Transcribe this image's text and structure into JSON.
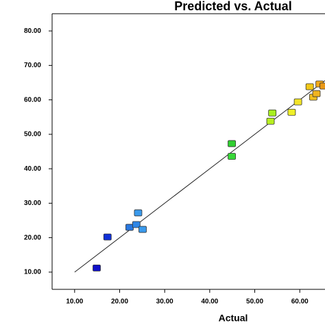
{
  "chart_data": {
    "type": "scatter",
    "title": "Predicted vs. Actual",
    "x_label": "Actual",
    "x": [
      14.9,
      17.3,
      22.2,
      23.7,
      24.1,
      25.1,
      44.9,
      44.9,
      53.9,
      53.5,
      58.2,
      59.6,
      62.2,
      63.0,
      63.7,
      64.4,
      65.3
    ],
    "values": [
      11.2,
      20.2,
      23.0,
      23.8,
      27.2,
      22.4,
      47.3,
      43.6,
      56.2,
      53.8,
      56.4,
      59.4,
      63.8,
      60.8,
      61.8,
      64.6,
      64.0
    ],
    "colors": [
      "#1010c8",
      "#1030d8",
      "#2a78e0",
      "#2f86e6",
      "#3a9aec",
      "#3a9aec",
      "#30d030",
      "#38d838",
      "#a8f020",
      "#b8f020",
      "#f0f028",
      "#f2e428",
      "#f2c818",
      "#f2c020",
      "#f0b420",
      "#f0a818",
      "#e89818"
    ],
    "xlim": [
      5,
      65.6
    ],
    "ylim": [
      5,
      85
    ],
    "xticks": [
      {
        "value": 10,
        "label": "10.00"
      },
      {
        "value": 20,
        "label": "20.00"
      },
      {
        "value": 30,
        "label": "30.00"
      },
      {
        "value": 40,
        "label": "40.00"
      },
      {
        "value": 50,
        "label": "50.00"
      },
      {
        "value": 60,
        "label": "60.00"
      }
    ],
    "yticks": [
      {
        "value": 10,
        "label": "10.00"
      },
      {
        "value": 20,
        "label": "20.00"
      },
      {
        "value": 30,
        "label": "30.00"
      },
      {
        "value": 40,
        "label": "40.00"
      },
      {
        "value": 50,
        "label": "50.00"
      },
      {
        "value": 60,
        "label": "60.00"
      },
      {
        "value": 70,
        "label": "70.00"
      },
      {
        "value": 80,
        "label": "80.00"
      }
    ],
    "diagonal": true
  }
}
